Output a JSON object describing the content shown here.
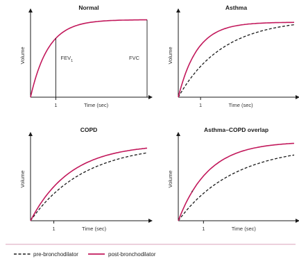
{
  "colors": {
    "pre": "#1a1a1a",
    "post": "#c2185b",
    "axis": "#1a1a1a",
    "text": "#333333",
    "divider": "#d8a0b8"
  },
  "legend": {
    "pre_label": "pre-bronchodilator",
    "post_label": "post-bronchodilator"
  },
  "chart_data": [
    {
      "type": "line",
      "title": "Normal",
      "ylabel": "Volume",
      "xlabel": "Time (sec)",
      "tick_x_label": "1",
      "tick_x_value": 1,
      "xlim": [
        0,
        4.6
      ],
      "ylim": [
        0,
        1
      ],
      "annotations": [
        {
          "type": "vline",
          "x": 1,
          "label": "FEV",
          "sub": "1"
        },
        {
          "type": "vline",
          "x": 4.6,
          "label": "FVC",
          "sub": ""
        }
      ],
      "series": [
        {
          "key": "post",
          "style": "solid",
          "tau": 0.7,
          "vmax": 0.93
        }
      ]
    },
    {
      "type": "line",
      "title": "Asthma",
      "ylabel": "Volume",
      "xlabel": "Time (sec)",
      "tick_x_label": "1",
      "tick_x_value": 1,
      "xlim": [
        0,
        5.2
      ],
      "ylim": [
        0,
        1
      ],
      "annotations": [],
      "series": [
        {
          "key": "pre",
          "style": "dashed",
          "tau": 2.0,
          "vmax": 0.94
        },
        {
          "key": "post",
          "style": "solid",
          "tau": 0.85,
          "vmax": 0.9
        }
      ]
    },
    {
      "type": "line",
      "title": "COPD",
      "ylabel": "Volume",
      "xlabel": "Time (sec)",
      "tick_x_label": "1",
      "tick_x_value": 1,
      "xlim": [
        0,
        5
      ],
      "ylim": [
        0,
        1
      ],
      "annotations": [],
      "series": [
        {
          "key": "pre",
          "style": "dashed",
          "tau": 2.3,
          "vmax": 0.92
        },
        {
          "key": "post",
          "style": "solid",
          "tau": 1.7,
          "vmax": 0.92
        }
      ]
    },
    {
      "type": "line",
      "title": "Asthma–COPD overlap",
      "ylabel": "Volume",
      "xlabel": "Time (sec)",
      "tick_x_label": "1",
      "tick_x_value": 1,
      "xlim": [
        0,
        4.6
      ],
      "ylim": [
        0,
        1
      ],
      "annotations": [
        {
          "type": "marker",
          "x": 0.55,
          "y": 0.32,
          "label": "*"
        }
      ],
      "series": [
        {
          "key": "pre",
          "style": "dashed",
          "tau": 2.2,
          "vmax": 0.9
        },
        {
          "key": "post",
          "style": "solid",
          "tau": 1.2,
          "vmax": 0.95
        }
      ]
    }
  ]
}
